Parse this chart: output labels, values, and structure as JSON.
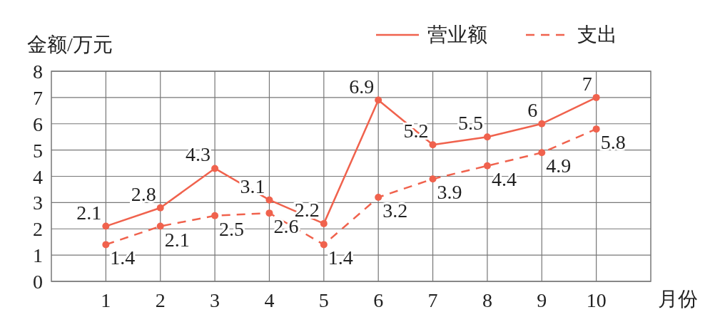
{
  "chart_data": {
    "type": "line",
    "xlabel": "月份",
    "ylabel": "金额/万元",
    "x": [
      1,
      2,
      3,
      4,
      5,
      6,
      7,
      8,
      9,
      10
    ],
    "xlim": [
      0,
      11
    ],
    "xticks": [
      1,
      2,
      3,
      4,
      5,
      6,
      7,
      8,
      9,
      10
    ],
    "ylim": [
      0,
      8
    ],
    "yticks": [
      0,
      1,
      2,
      3,
      4,
      5,
      6,
      7,
      8
    ],
    "grid": true,
    "legend": "top right",
    "marker": "circle",
    "data_labels": true,
    "series": [
      {
        "name": "营业额",
        "color": "#f0624d",
        "line_style": "solid",
        "values": [
          2.1,
          2.8,
          4.3,
          3.1,
          2.2,
          6.9,
          5.2,
          5.5,
          6,
          7
        ]
      },
      {
        "name": "支出",
        "color": "#f0624d",
        "line_style": "dashed",
        "values": [
          1.4,
          2.1,
          2.5,
          2.6,
          1.4,
          3.2,
          3.9,
          4.4,
          4.9,
          5.8
        ]
      }
    ]
  }
}
